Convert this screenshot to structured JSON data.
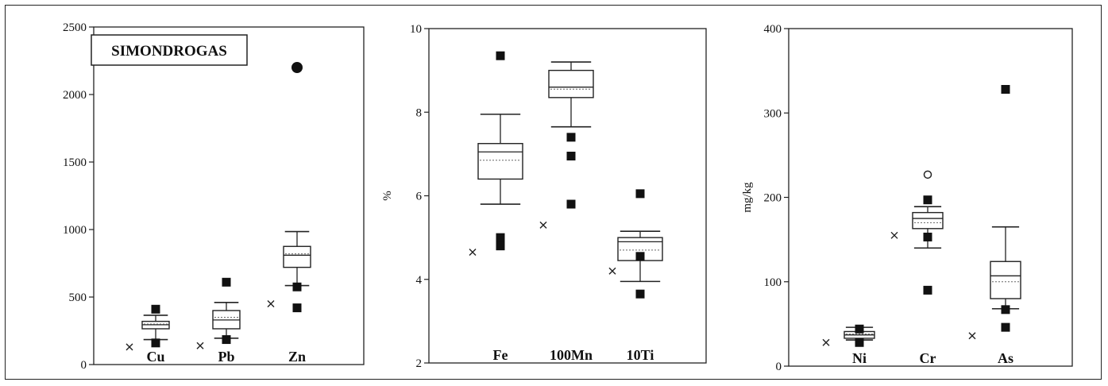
{
  "title": "SIMONDROGAS",
  "chart_data": [
    {
      "type": "box",
      "ylabel": "",
      "ylim": [
        0,
        2500
      ],
      "yticks": [
        "0",
        "500",
        "1000",
        "1500",
        "2000",
        "2500"
      ],
      "categories": [
        "Cu",
        "Pb",
        "Zn"
      ],
      "boxes": [
        {
          "label": "Cu",
          "min": 185,
          "q1": 265,
          "median": 295,
          "q3": 320,
          "max": 365,
          "mean": 300,
          "outliers": [
            {
              "value": 410,
              "marker": "square"
            },
            {
              "value": 160,
              "marker": "square"
            }
          ],
          "cross": 130
        },
        {
          "label": "Pb",
          "min": 195,
          "q1": 265,
          "median": 330,
          "q3": 400,
          "max": 460,
          "mean": 350,
          "outliers": [
            {
              "value": 610,
              "marker": "square"
            },
            {
              "value": 185,
              "marker": "square"
            }
          ],
          "cross": 140
        },
        {
          "label": "Zn",
          "min": 585,
          "q1": 720,
          "median": 810,
          "q3": 875,
          "max": 985,
          "mean": 820,
          "outliers": [
            {
              "value": 2200,
              "marker": "circle-filled"
            },
            {
              "value": 575,
              "marker": "square"
            },
            {
              "value": 420,
              "marker": "square"
            }
          ],
          "cross": 450
        }
      ]
    },
    {
      "type": "box",
      "ylabel": "%",
      "ylim": [
        2,
        10
      ],
      "yticks": [
        "2",
        "4",
        "6",
        "8",
        "10"
      ],
      "categories": [
        "Fe",
        "100Mn",
        "10Ti"
      ],
      "boxes": [
        {
          "label": "Fe",
          "min": 5.8,
          "q1": 6.4,
          "median": 7.05,
          "q3": 7.25,
          "max": 7.95,
          "mean": 6.85,
          "outliers": [
            {
              "value": 9.35,
              "marker": "square"
            },
            {
              "value": 5.0,
              "marker": "square"
            },
            {
              "value": 4.8,
              "marker": "square"
            }
          ],
          "cross": 4.65
        },
        {
          "label": "100Mn",
          "min": 7.65,
          "q1": 8.35,
          "median": 8.6,
          "q3": 9.0,
          "max": 9.2,
          "mean": 8.55,
          "outliers": [
            {
              "value": 7.4,
              "marker": "square"
            },
            {
              "value": 6.95,
              "marker": "square"
            },
            {
              "value": 5.8,
              "marker": "square"
            }
          ],
          "cross": 5.3
        },
        {
          "label": "10Ti",
          "min": 3.95,
          "q1": 4.45,
          "median": 4.9,
          "q3": 5.0,
          "max": 5.15,
          "mean": 4.7,
          "outliers": [
            {
              "value": 6.05,
              "marker": "square"
            },
            {
              "value": 4.55,
              "marker": "square"
            },
            {
              "value": 3.65,
              "marker": "square"
            }
          ],
          "cross": 4.2
        }
      ]
    },
    {
      "type": "box",
      "ylabel": "mg/kg",
      "ylim": [
        0,
        400
      ],
      "yticks": [
        "0",
        "100",
        "200",
        "300",
        "400"
      ],
      "categories": [
        "Ni",
        "Cr",
        "As"
      ],
      "boxes": [
        {
          "label": "Ni",
          "min": 31,
          "q1": 33,
          "median": 37,
          "q3": 41,
          "max": 46,
          "mean": 38,
          "outliers": [
            {
              "value": 28,
              "marker": "square"
            },
            {
              "value": 44,
              "marker": "square"
            }
          ],
          "cross": 28
        },
        {
          "label": "Cr",
          "min": 140,
          "q1": 163,
          "median": 175,
          "q3": 182,
          "max": 189,
          "mean": 170,
          "outliers": [
            {
              "value": 227,
              "marker": "circle-open"
            },
            {
              "value": 197,
              "marker": "square"
            },
            {
              "value": 153,
              "marker": "square"
            },
            {
              "value": 90,
              "marker": "square"
            }
          ],
          "cross": 155
        },
        {
          "label": "As",
          "min": 68,
          "q1": 80,
          "median": 107,
          "q3": 124,
          "max": 165,
          "mean": 100,
          "outliers": [
            {
              "value": 328,
              "marker": "square"
            },
            {
              "value": 67,
              "marker": "square"
            },
            {
              "value": 46,
              "marker": "square"
            }
          ],
          "cross": 36
        }
      ]
    }
  ]
}
